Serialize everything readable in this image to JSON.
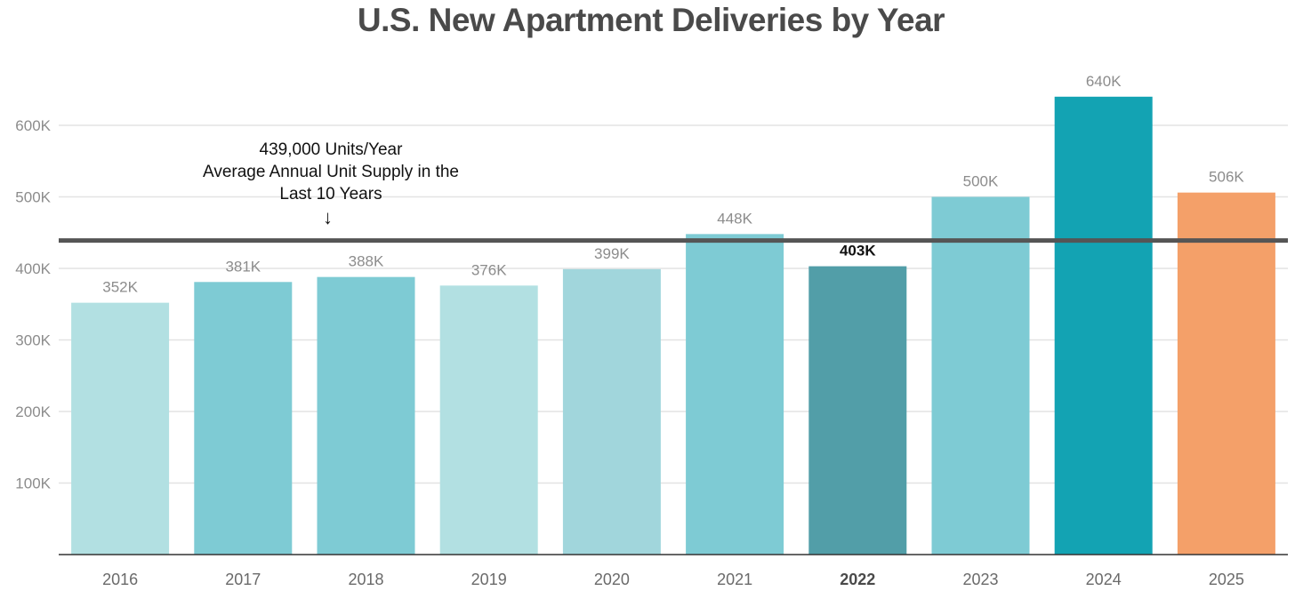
{
  "chart_data": {
    "type": "bar",
    "title": "U.S. New Apartment Deliveries by Year",
    "xlabel": "",
    "ylabel": "",
    "ylim": [
      0,
      650000
    ],
    "yticks": [
      100000,
      200000,
      300000,
      400000,
      500000,
      600000
    ],
    "ytick_labels": [
      "100K",
      "200K",
      "300K",
      "400K",
      "500K",
      "600K"
    ],
    "grid": true,
    "categories": [
      "2016",
      "2017",
      "2018",
      "2019",
      "2020",
      "2021",
      "2022",
      "2023",
      "2024",
      "2025"
    ],
    "values": [
      352000,
      381000,
      388000,
      376000,
      399000,
      448000,
      403000,
      500000,
      640000,
      506000
    ],
    "value_labels": [
      "352K",
      "381K",
      "388K",
      "376K",
      "399K",
      "448K",
      "403K",
      "500K",
      "640K",
      "506K"
    ],
    "highlighted_category": "2022",
    "bar_colors": [
      "#b2e0e2",
      "#7ecbd4",
      "#7ecbd4",
      "#b2e0e2",
      "#a1d6dc",
      "#7ecbd4",
      "#529ea8",
      "#7ecbd4",
      "#13a3b3",
      "#f4a069"
    ],
    "reference_line": {
      "value": 439000,
      "color": "#555555",
      "label_line1": "439,000 Units/Year",
      "label_line2": "Average Annual Unit Supply in the",
      "label_line3": "Last 10 Years",
      "arrow": "↓"
    },
    "colors": {
      "grid": "#e3e3e3",
      "axis": "#333333",
      "tick_text": "#8c8c8c"
    }
  }
}
